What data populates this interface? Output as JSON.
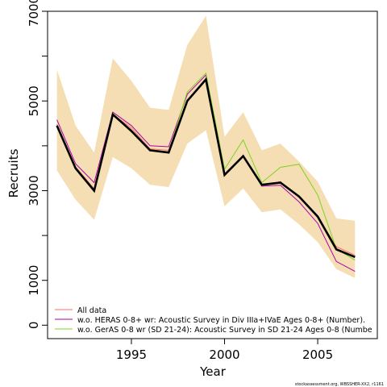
{
  "chart_data": {
    "type": "line",
    "xlabel": "Year",
    "ylabel": "Recruits",
    "xlim": [
      1990.5,
      2008.2
    ],
    "ylim": [
      -300,
      7000
    ],
    "x_ticks": [
      1995,
      2000,
      2005
    ],
    "y_ticks": [
      0,
      1000,
      3000,
      5000,
      7000
    ],
    "x": [
      1991,
      1992,
      1993,
      1994,
      1995,
      1996,
      1997,
      1998,
      1999,
      2000,
      2001,
      2002,
      2003,
      2004,
      2005,
      2006,
      2007
    ],
    "band": {
      "upper": [
        5700,
        4450,
        3850,
        5950,
        5450,
        4850,
        4800,
        6250,
        6900,
        4200,
        4750,
        3900,
        4050,
        3650,
        3200,
        2380,
        2330
      ],
      "lower": [
        3450,
        2800,
        2350,
        3750,
        3500,
        3130,
        3080,
        4050,
        4350,
        2650,
        3050,
        2520,
        2580,
        2250,
        1850,
        1250,
        1050
      ],
      "color": "#f5deb3"
    },
    "series": [
      {
        "name": "All data",
        "color": "#ff6b6b",
        "values": [
          4480,
          3530,
          3040,
          4700,
          4400,
          3930,
          3900,
          5000,
          5500,
          3380,
          3780,
          3130,
          3200,
          2850,
          2420,
          1750,
          1560
        ]
      },
      {
        "name": "w.o. HERAS 0-8+ wr: Acoustic Survey in Div IIIa+IVaE Ages 0-8+ (Number).",
        "color": "#aa00aa",
        "values": [
          4580,
          3600,
          3180,
          4750,
          4450,
          4000,
          3980,
          5150,
          5580,
          3350,
          3780,
          3100,
          3120,
          2750,
          2270,
          1420,
          1200
        ]
      },
      {
        "name": "w.o. GerAS 0-8 wr (SD 21-24): Acoustic Survey in SD 21-24 Ages 0-8 (Numbe",
        "color": "#7ed321",
        "values": [
          4450,
          3480,
          3030,
          4700,
          4300,
          3900,
          3860,
          5200,
          5620,
          3480,
          4130,
          3180,
          3520,
          3590,
          2900,
          1700,
          1450
        ]
      }
    ],
    "main_line": {
      "color": "#000000",
      "values": [
        4450,
        3500,
        3000,
        4700,
        4330,
        3900,
        3850,
        5000,
        5480,
        3350,
        3770,
        3130,
        3180,
        2870,
        2420,
        1690,
        1520
      ]
    },
    "legend_position": "bottom-left",
    "grid": false,
    "footer": "stockassessment.org, WBSSHER-XX2, r1161"
  }
}
